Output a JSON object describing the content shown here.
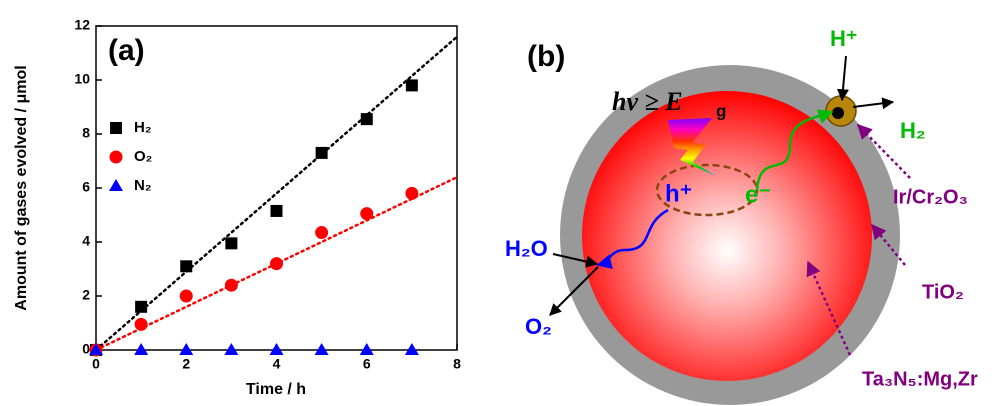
{
  "chart_data": {
    "type": "scatter",
    "panel_label": "(a)",
    "x_label": "Time / h",
    "y_label": "Amount of gases evolved / μmol",
    "x": [
      0,
      1,
      2,
      3,
      4,
      5,
      6,
      7
    ],
    "series": [
      {
        "name": "H₂",
        "color": "#000000",
        "marker": "square",
        "values": [
          0,
          1.6,
          3.1,
          3.95,
          5.15,
          7.3,
          8.55,
          9.8
        ]
      },
      {
        "name": "O₂",
        "color": "#ff0000",
        "marker": "circle",
        "values": [
          0,
          0.95,
          2.0,
          2.4,
          3.2,
          4.35,
          5.05,
          5.8
        ]
      },
      {
        "name": "N₂",
        "color": "#0000ff",
        "marker": "triangle",
        "values": [
          0,
          0,
          0,
          0,
          0,
          0,
          0,
          0
        ]
      }
    ],
    "trend_lines": [
      {
        "color": "#000000",
        "x": [
          0,
          8
        ],
        "values": [
          0,
          11.6
        ]
      },
      {
        "color": "#ff0000",
        "x": [
          0,
          8
        ],
        "values": [
          0,
          6.4
        ]
      }
    ],
    "xlim": [
      0,
      8
    ],
    "xticks": [
      0,
      2,
      4,
      6,
      8
    ],
    "ylim": [
      0,
      12
    ],
    "yticks": [
      0,
      2,
      4,
      6,
      8,
      10,
      12
    ]
  },
  "diagram": {
    "panel_label": "(b)",
    "photon": "hν ≥ E",
    "photon_sub": "g",
    "hole": "h⁺",
    "electron": "e⁻",
    "proton": "H⁺",
    "hydrogen": "H₂",
    "water": "H₂O",
    "oxygen": "O₂",
    "cocatalyst": "Ir/Cr₂O₃",
    "shell": "TiO₂",
    "core": "Ta₃N₅:Mg,Zr"
  }
}
